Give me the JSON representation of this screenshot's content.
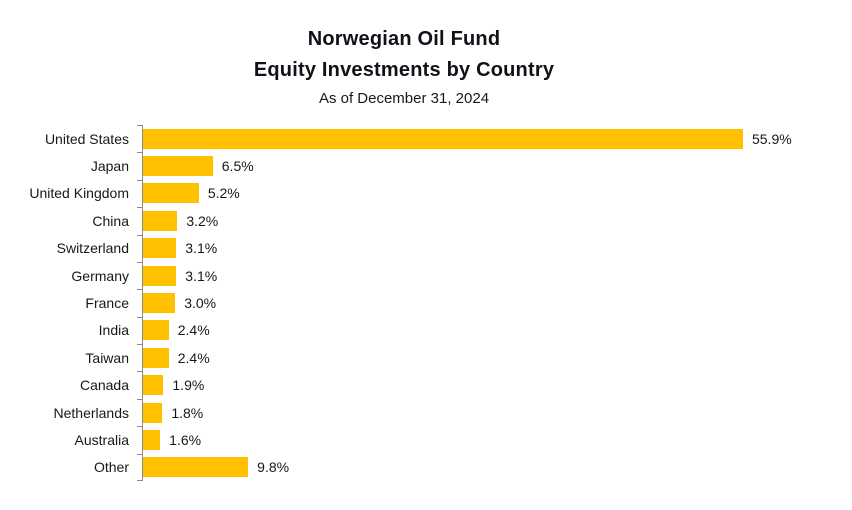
{
  "header": {
    "title_line1": "Norwegian Oil Fund",
    "title_line2": "Equity Investments by Country",
    "subtitle": "As of December 31, 2024"
  },
  "colors": {
    "bar_fill": "#FFC000",
    "axis": "#8a8a8a",
    "text": "#17171f"
  },
  "chart_data": {
    "type": "bar",
    "orientation": "horizontal",
    "title": "Norwegian Oil Fund Equity Investments by Country",
    "subtitle": "As of December 31, 2024",
    "categories": [
      "United States",
      "Japan",
      "United Kingdom",
      "China",
      "Switzerland",
      "Germany",
      "France",
      "India",
      "Taiwan",
      "Canada",
      "Netherlands",
      "Australia",
      "Other"
    ],
    "values": [
      55.9,
      6.5,
      5.2,
      3.2,
      3.1,
      3.1,
      3.0,
      2.4,
      2.4,
      1.9,
      1.8,
      1.6,
      9.8
    ],
    "value_labels": [
      "55.9%",
      "6.5%",
      "5.2%",
      "3.2%",
      "3.1%",
      "3.1%",
      "3.0%",
      "2.4%",
      "2.4%",
      "1.9%",
      "1.8%",
      "1.6%",
      "9.8%"
    ],
    "unit": "%",
    "xlim": [
      0,
      60
    ],
    "xlabel": "",
    "ylabel": "",
    "grid": false,
    "legend": false,
    "value_label_position": "outside-end"
  }
}
